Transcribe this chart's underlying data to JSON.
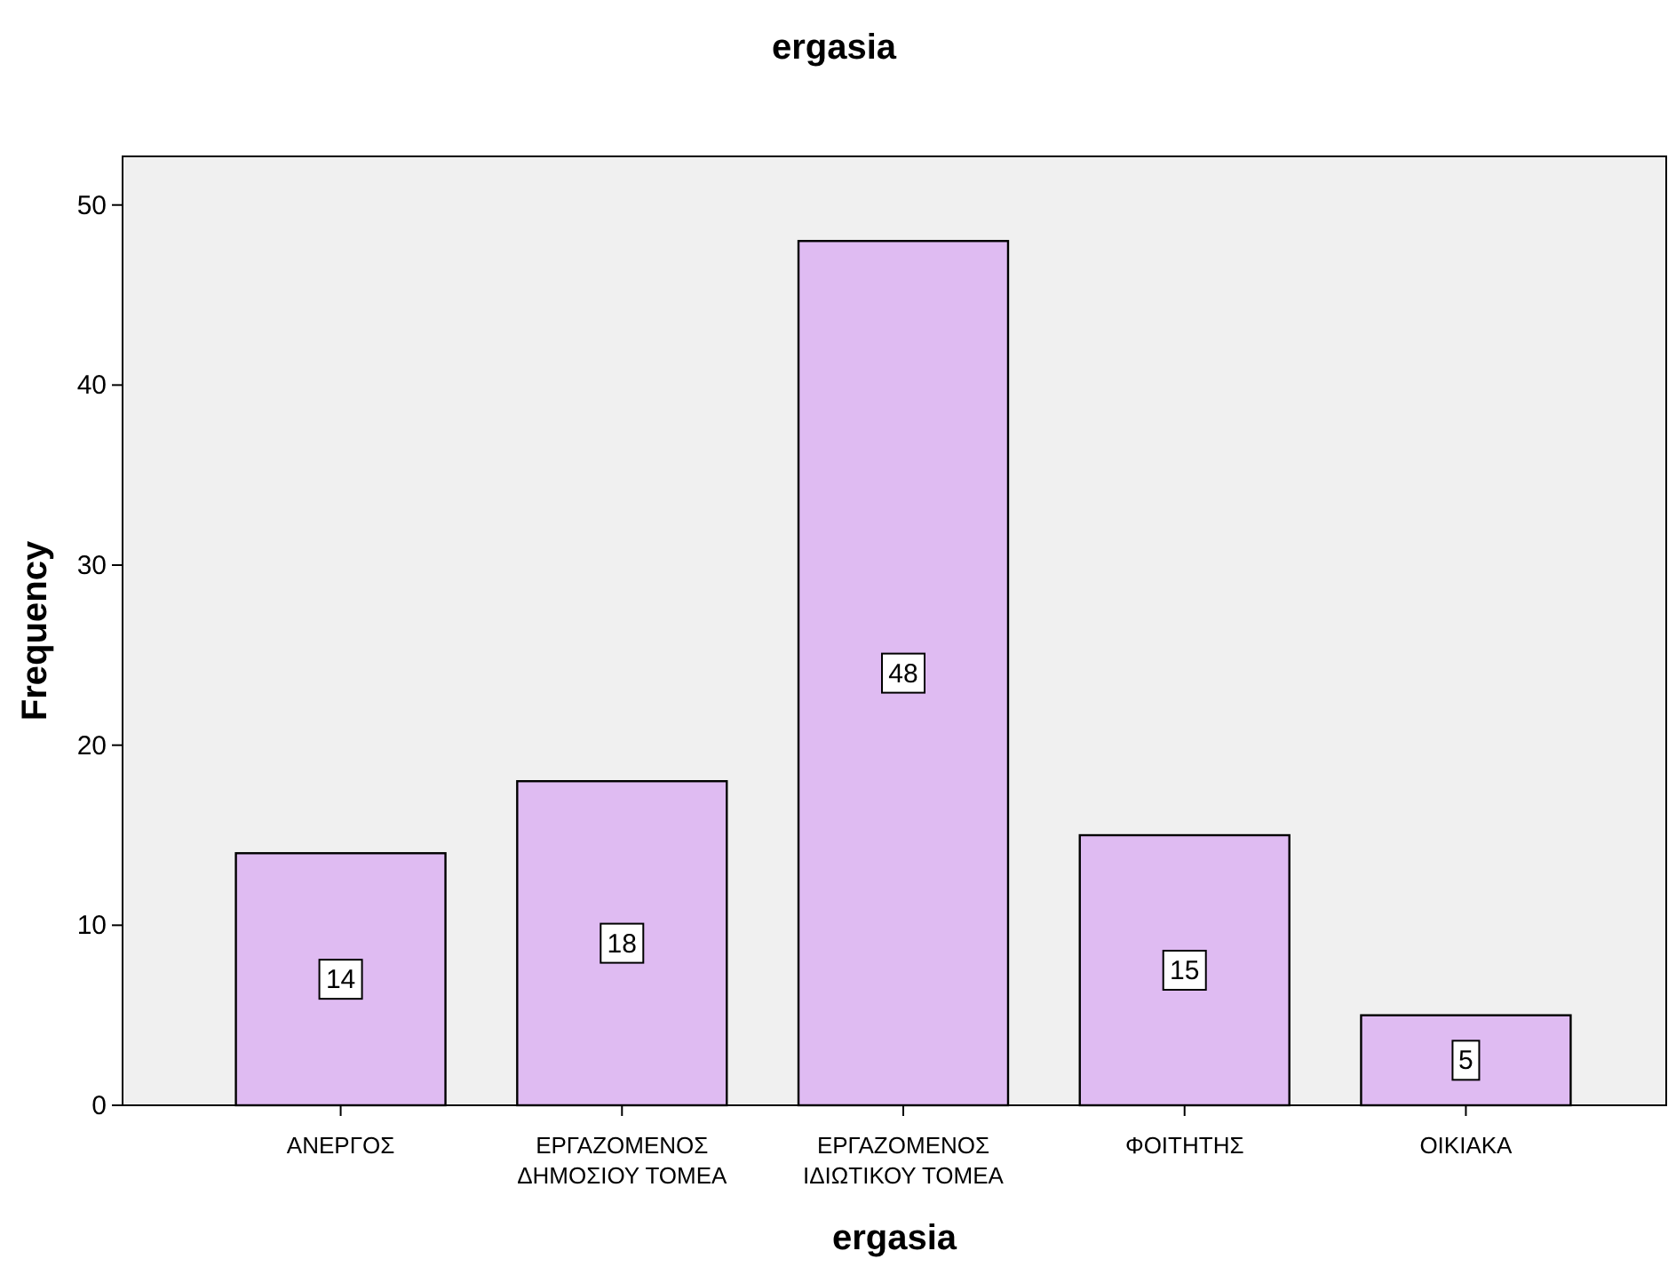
{
  "chart_data": {
    "type": "bar",
    "title": "ergasia",
    "xlabel": "ergasia",
    "ylabel": "Frequency",
    "categories": [
      "ΑΝΕΡΓΟΣ",
      "ΕΡΓΑΖΟΜΕΝΟΣ\nΔΗΜΟΣΙΟΥ ΤΟΜΕΑ",
      "ΕΡΓΑΖΟΜΕΝΟΣ\nΙΔΙΩΤΙΚΟΥ ΤΟΜΕΑ",
      "ΦΟΙΤΗΤΗΣ",
      "ΟΙΚΙΑΚΑ"
    ],
    "values": [
      14,
      18,
      48,
      15,
      5
    ],
    "color": "#dfbbf2",
    "ylim": [
      0,
      52.7
    ],
    "yticks": [
      0,
      10,
      20,
      30,
      40,
      50
    ],
    "grid": false,
    "data_labels": true
  }
}
